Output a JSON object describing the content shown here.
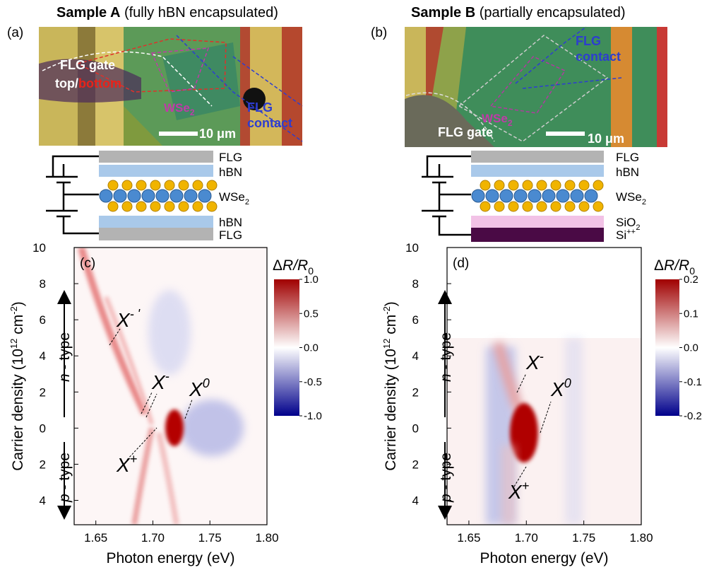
{
  "panel_a": {
    "label": "(a)",
    "title_bold": "Sample A",
    "title_rest": "(fully hBN encapsulated)",
    "gate_label": "FLG gate",
    "gate_top": "top",
    "gate_slash": "/",
    "gate_bottom": "bottom",
    "flake": "WSe",
    "flake_sub": "2",
    "contact_line1": "FLG",
    "contact_line2": "contact",
    "scale": "10 μm",
    "layers": [
      {
        "text": "FLG"
      },
      {
        "text": "hBN"
      },
      {
        "text": "WSe",
        "sub": "2"
      },
      {
        "text": "hBN"
      },
      {
        "text": "FLG"
      }
    ]
  },
  "panel_b": {
    "label": "(b)",
    "title_bold": "Sample B",
    "title_rest": "(partially encapsulated)",
    "gate_label": "FLG gate",
    "flake": "WSe",
    "flake_sub": "2",
    "contact_line1": "FLG",
    "contact_line2": "contact",
    "scale": "10 μm",
    "layers": [
      {
        "text": "FLG"
      },
      {
        "text": "hBN"
      },
      {
        "text": "WSe",
        "sub": "2"
      },
      {
        "text": "SiO",
        "sub": "2"
      },
      {
        "text": "Si",
        "sup": "++"
      }
    ]
  },
  "chart_data": [
    {
      "type": "heatmap",
      "panel_label": "(c)",
      "xlabel": "Photon energy (eV)",
      "ylabel": {
        "main": "Carrier density  (10",
        "exp": "12",
        "unit": " cm",
        "unit_exp": "-2",
        "close": ")"
      },
      "n_type": {
        "letter": "n",
        "rest": " - type"
      },
      "p_type": {
        "letter": "p",
        "rest": " - type"
      },
      "xlim": [
        1.631,
        1.8
      ],
      "xticks": [
        1.65,
        {
          "value": 1.7,
          "label": "1.70"
        },
        1.75,
        {
          "value": 1.8,
          "label": "1.80"
        }
      ],
      "ylim": [
        -5.35,
        10
      ],
      "yticks": [
        10,
        8,
        6,
        4,
        2,
        0,
        {
          "value": -2,
          "label": "2"
        },
        {
          "value": -4,
          "label": "4"
        }
      ],
      "colorbar": {
        "title": {
          "delta": "Δ",
          "ratio": "R/R",
          "sub": "0"
        },
        "clim": [
          -1,
          1
        ],
        "colors": [
          "#00008b",
          "#ffffff",
          "#a00000"
        ],
        "ticks": [
          {
            "value": 1,
            "label": "1.0"
          },
          0.5,
          {
            "value": 0,
            "label": "0.0"
          },
          -0.5,
          {
            "value": -1,
            "label": "-1.0"
          }
        ]
      },
      "annotations": [
        {
          "base": "X",
          "sup": "- '"
        },
        {
          "base": "X",
          "sup": "-"
        },
        {
          "base": "X",
          "sup": "0"
        },
        {
          "base": "X",
          "sup": "+"
        }
      ]
    },
    {
      "type": "heatmap",
      "panel_label": "(d)",
      "xlabel": "Photon energy (eV)",
      "ylabel": {
        "main": "Carrier density  (10",
        "exp": "12",
        "unit": " cm",
        "unit_exp": "-2",
        "close": ")"
      },
      "n_type": {
        "letter": "n",
        "rest": " - type"
      },
      "p_type": {
        "letter": "p",
        "rest": " - type"
      },
      "xlim": [
        1.631,
        1.8
      ],
      "xticks": [
        1.65,
        {
          "value": 1.7,
          "label": "1.70"
        },
        1.75,
        {
          "value": 1.8,
          "label": "1.80"
        }
      ],
      "ylim": [
        -5.35,
        10
      ],
      "yticks": [
        10,
        8,
        6,
        4,
        2,
        0,
        {
          "value": -2,
          "label": "2"
        },
        {
          "value": -4,
          "label": "4"
        }
      ],
      "colorbar": {
        "title": {
          "delta": "Δ",
          "ratio": "R/R",
          "sub": "0"
        },
        "clim": [
          -0.2,
          0.2
        ],
        "colors": [
          "#00008b",
          "#ffffff",
          "#a00000"
        ],
        "ticks": [
          0.2,
          0.1,
          {
            "value": 0,
            "label": "0.0"
          },
          -0.1,
          -0.2
        ]
      },
      "annotations": [
        {
          "base": "X",
          "sup": "-"
        },
        {
          "base": "X",
          "sup": "0"
        },
        {
          "base": "X",
          "sup": "+"
        }
      ]
    }
  ]
}
